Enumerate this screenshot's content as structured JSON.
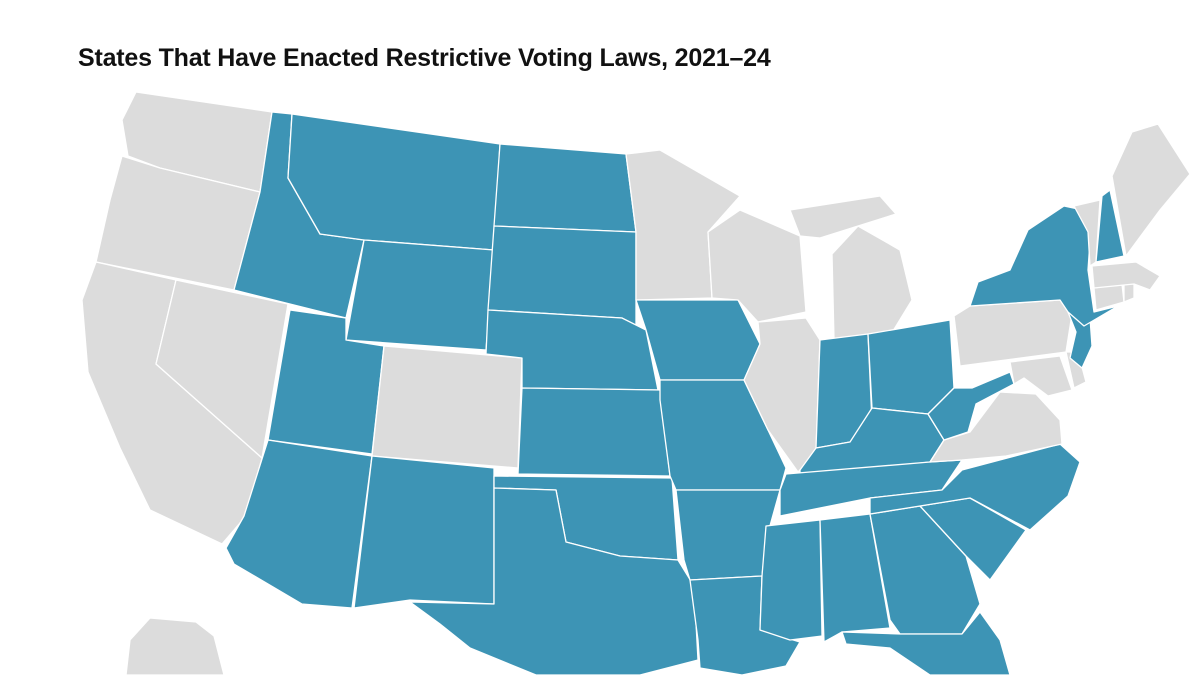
{
  "map": {
    "title": "States That Have Enacted Restrictive Voting Laws, 2021–24",
    "colors": {
      "restrictive": "#3d94b5",
      "other": "#dcdcdc",
      "border": "#ffffff",
      "background": "#ffffff"
    },
    "states": [
      {
        "code": "WA",
        "restrictive": false
      },
      {
        "code": "OR",
        "restrictive": false
      },
      {
        "code": "CA",
        "restrictive": false
      },
      {
        "code": "NV",
        "restrictive": false
      },
      {
        "code": "ID",
        "restrictive": true
      },
      {
        "code": "MT",
        "restrictive": true
      },
      {
        "code": "WY",
        "restrictive": true
      },
      {
        "code": "UT",
        "restrictive": true
      },
      {
        "code": "CO",
        "restrictive": false
      },
      {
        "code": "AZ",
        "restrictive": true
      },
      {
        "code": "NM",
        "restrictive": true
      },
      {
        "code": "ND",
        "restrictive": true
      },
      {
        "code": "SD",
        "restrictive": true
      },
      {
        "code": "NE",
        "restrictive": true
      },
      {
        "code": "KS",
        "restrictive": true
      },
      {
        "code": "OK",
        "restrictive": true
      },
      {
        "code": "TX",
        "restrictive": true
      },
      {
        "code": "MN",
        "restrictive": false
      },
      {
        "code": "IA",
        "restrictive": true
      },
      {
        "code": "MO",
        "restrictive": true
      },
      {
        "code": "AR",
        "restrictive": true
      },
      {
        "code": "LA",
        "restrictive": true
      },
      {
        "code": "WI",
        "restrictive": false
      },
      {
        "code": "IL",
        "restrictive": false
      },
      {
        "code": "MI",
        "restrictive": false
      },
      {
        "code": "IN",
        "restrictive": true
      },
      {
        "code": "OH",
        "restrictive": true
      },
      {
        "code": "KY",
        "restrictive": true
      },
      {
        "code": "TN",
        "restrictive": true
      },
      {
        "code": "MS",
        "restrictive": true
      },
      {
        "code": "AL",
        "restrictive": true
      },
      {
        "code": "GA",
        "restrictive": true
      },
      {
        "code": "FL",
        "restrictive": true
      },
      {
        "code": "SC",
        "restrictive": true
      },
      {
        "code": "NC",
        "restrictive": true
      },
      {
        "code": "VA",
        "restrictive": false
      },
      {
        "code": "WV",
        "restrictive": true
      },
      {
        "code": "PA",
        "restrictive": false
      },
      {
        "code": "NY",
        "restrictive": true
      },
      {
        "code": "NJ",
        "restrictive": true
      },
      {
        "code": "DE",
        "restrictive": false
      },
      {
        "code": "MD",
        "restrictive": false
      },
      {
        "code": "CT",
        "restrictive": false
      },
      {
        "code": "RI",
        "restrictive": false
      },
      {
        "code": "MA",
        "restrictive": false
      },
      {
        "code": "VT",
        "restrictive": false
      },
      {
        "code": "NH",
        "restrictive": true
      },
      {
        "code": "ME",
        "restrictive": false
      },
      {
        "code": "AK",
        "restrictive": false
      }
    ]
  }
}
